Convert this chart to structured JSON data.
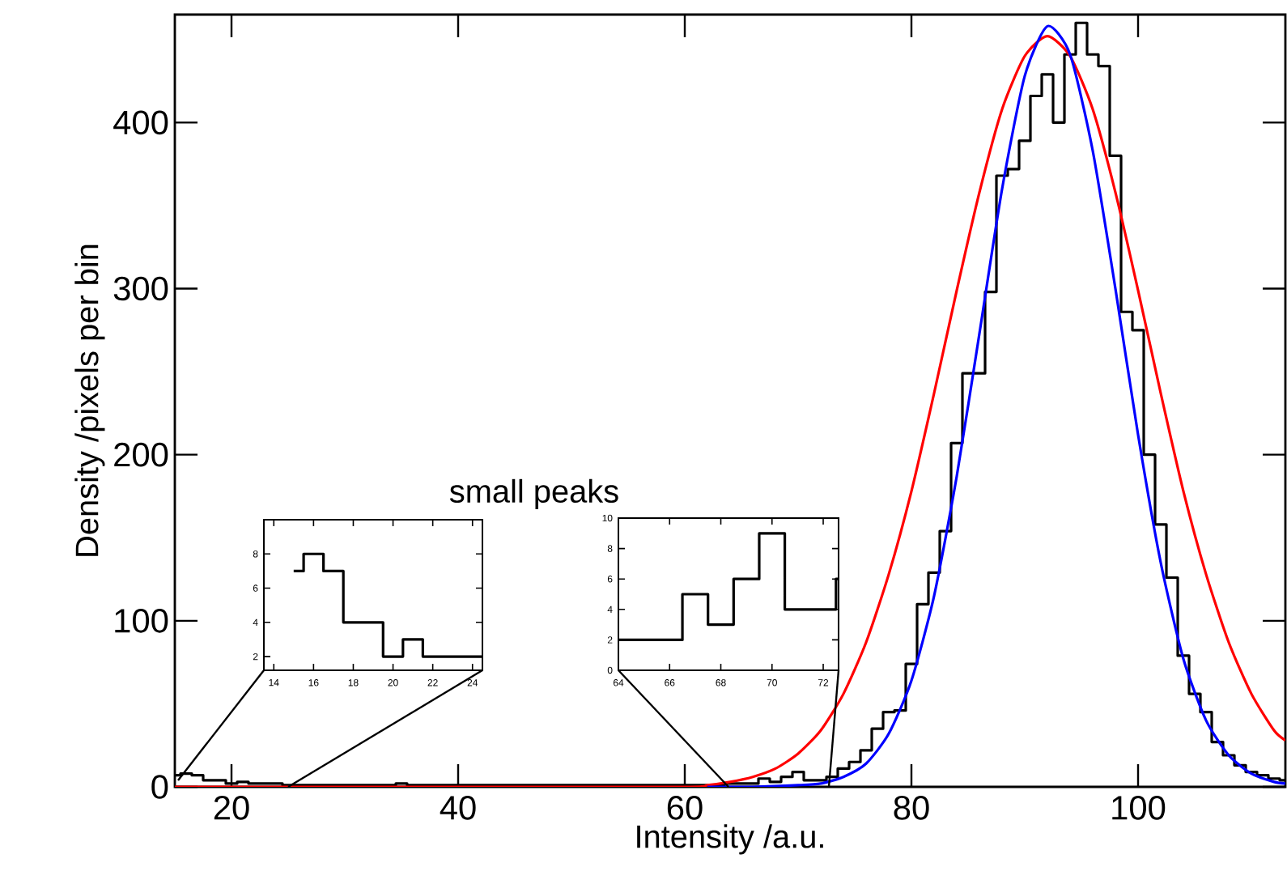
{
  "chart_data": [
    {
      "type": "histogram",
      "xlabel": "Intensity /a.u.",
      "ylabel": "Density /pixels per bin",
      "annotations": [
        "small peaks"
      ],
      "xlim": [
        15,
        113
      ],
      "ylim": [
        0,
        465
      ],
      "xticks": [
        20,
        40,
        60,
        80,
        100
      ],
      "yticks": [
        0,
        100,
        200,
        300,
        400
      ],
      "bins": [
        15,
        15.5,
        16.5,
        17.5,
        18.5,
        19.5,
        20.5,
        21.5,
        22.5,
        23.5,
        24.5,
        25.5,
        26.5,
        27.5,
        28.5,
        29.5,
        30.5,
        31.5,
        32.5,
        33.5,
        34.5,
        35.5,
        36.5,
        37.5,
        38.5,
        39.5,
        40.5,
        41.5,
        42.5,
        43.5,
        44.5,
        45.5,
        46.5,
        47.5,
        48.5,
        49.5,
        50.5,
        51.5,
        52.5,
        53.5,
        54.5,
        55.5,
        56.5,
        57.5,
        58.5,
        59.5,
        60.5,
        61.5,
        62.5,
        63.5,
        64.5,
        65.5,
        66.5,
        67.5,
        68.5,
        69.5,
        70.5,
        71.5,
        72.5,
        73.5,
        74.5,
        75.5,
        76.5,
        77.5,
        78.5,
        79.5,
        80.5,
        81.5,
        82.5,
        83.5,
        84.5,
        85.5,
        86.5,
        87.5,
        88.5,
        89.5,
        90.5,
        91.5,
        92.5,
        93.5,
        94.5,
        95.5,
        96.5,
        97.5,
        98.5,
        99.5,
        100.5,
        101.5,
        102.5,
        103.5,
        104.5,
        105.5,
        106.5,
        107.5,
        108.5,
        109.5,
        110.5,
        111.5,
        112.5,
        113
      ],
      "series": [
        {
          "type": "histogram",
          "color": "#000000",
          "values": [
            7,
            8,
            7,
            4,
            4,
            2,
            3,
            2,
            2,
            2,
            1,
            1,
            1,
            1,
            1,
            1,
            1,
            1,
            1,
            1,
            2,
            1,
            1,
            1,
            1,
            1,
            1,
            1,
            1,
            1,
            1,
            1,
            1,
            1,
            1,
            1,
            1,
            1,
            1,
            1,
            1,
            1,
            1,
            1,
            1,
            1,
            1,
            1,
            1,
            2,
            2,
            2,
            5,
            3,
            6,
            9,
            4,
            4,
            6,
            11,
            15,
            22,
            35,
            45,
            46,
            74,
            110,
            129,
            154,
            207,
            249,
            249,
            298,
            368,
            372,
            389,
            416,
            429,
            400,
            441,
            460,
            441,
            434,
            380,
            286,
            275,
            200,
            158,
            126,
            79,
            56,
            45,
            27,
            19,
            13,
            9,
            7,
            5,
            4
          ]
        },
        {
          "type": "line",
          "color": "#ff0000",
          "x": [
            15,
            40,
            60,
            62,
            64,
            66,
            68,
            70,
            72,
            74,
            76,
            78,
            80,
            82,
            84,
            86,
            88,
            90,
            92,
            94,
            96,
            98,
            100,
            102,
            104,
            106,
            108,
            110,
            112,
            113
          ],
          "values": [
            0,
            0,
            0,
            1,
            3,
            6,
            11,
            20,
            34,
            56,
            87,
            128,
            178,
            237,
            299,
            358,
            408,
            440,
            452,
            440,
            408,
            358,
            299,
            237,
            178,
            128,
            87,
            56,
            34,
            28
          ]
        },
        {
          "type": "line",
          "color": "#0000ff",
          "x": [
            62,
            66,
            70,
            72,
            74,
            76,
            78,
            80,
            82,
            84,
            86,
            88,
            90,
            92,
            94,
            96,
            98,
            100,
            102,
            104,
            106,
            108,
            110,
            112,
            113
          ],
          "values": [
            0,
            0,
            1,
            2,
            6,
            14,
            32,
            64,
            115,
            187,
            273,
            360,
            428,
            458,
            441,
            383,
            300,
            212,
            135,
            77,
            40,
            19,
            8,
            3,
            2
          ]
        }
      ]
    },
    {
      "type": "histogram",
      "xlim": [
        13.5,
        24.5
      ],
      "ylim": [
        1.2,
        10
      ],
      "xticks": [
        14,
        16,
        18,
        20,
        22,
        24
      ],
      "yticks": [
        2,
        4,
        6,
        8
      ],
      "color": "#000000",
      "bins": [
        15,
        15.5,
        16.5,
        17.5,
        18.5,
        19.5,
        20.5,
        21.5,
        22.5,
        23.5,
        24.5
      ],
      "values": [
        7,
        8,
        7,
        4,
        4,
        2,
        3,
        2,
        2,
        2
      ]
    },
    {
      "type": "histogram",
      "xlim": [
        64,
        72.6
      ],
      "ylim": [
        0,
        10
      ],
      "xticks": [
        64,
        66,
        68,
        70,
        72
      ],
      "yticks": [
        0,
        2,
        4,
        6,
        8,
        10
      ],
      "color": "#000000",
      "bins": [
        64,
        64.5,
        65.5,
        66.5,
        67.5,
        68.5,
        69.5,
        70.5,
        71.5,
        72.5,
        72.6
      ],
      "values": [
        2,
        2,
        2,
        5,
        3,
        6,
        9,
        4,
        4,
        6
      ]
    }
  ]
}
